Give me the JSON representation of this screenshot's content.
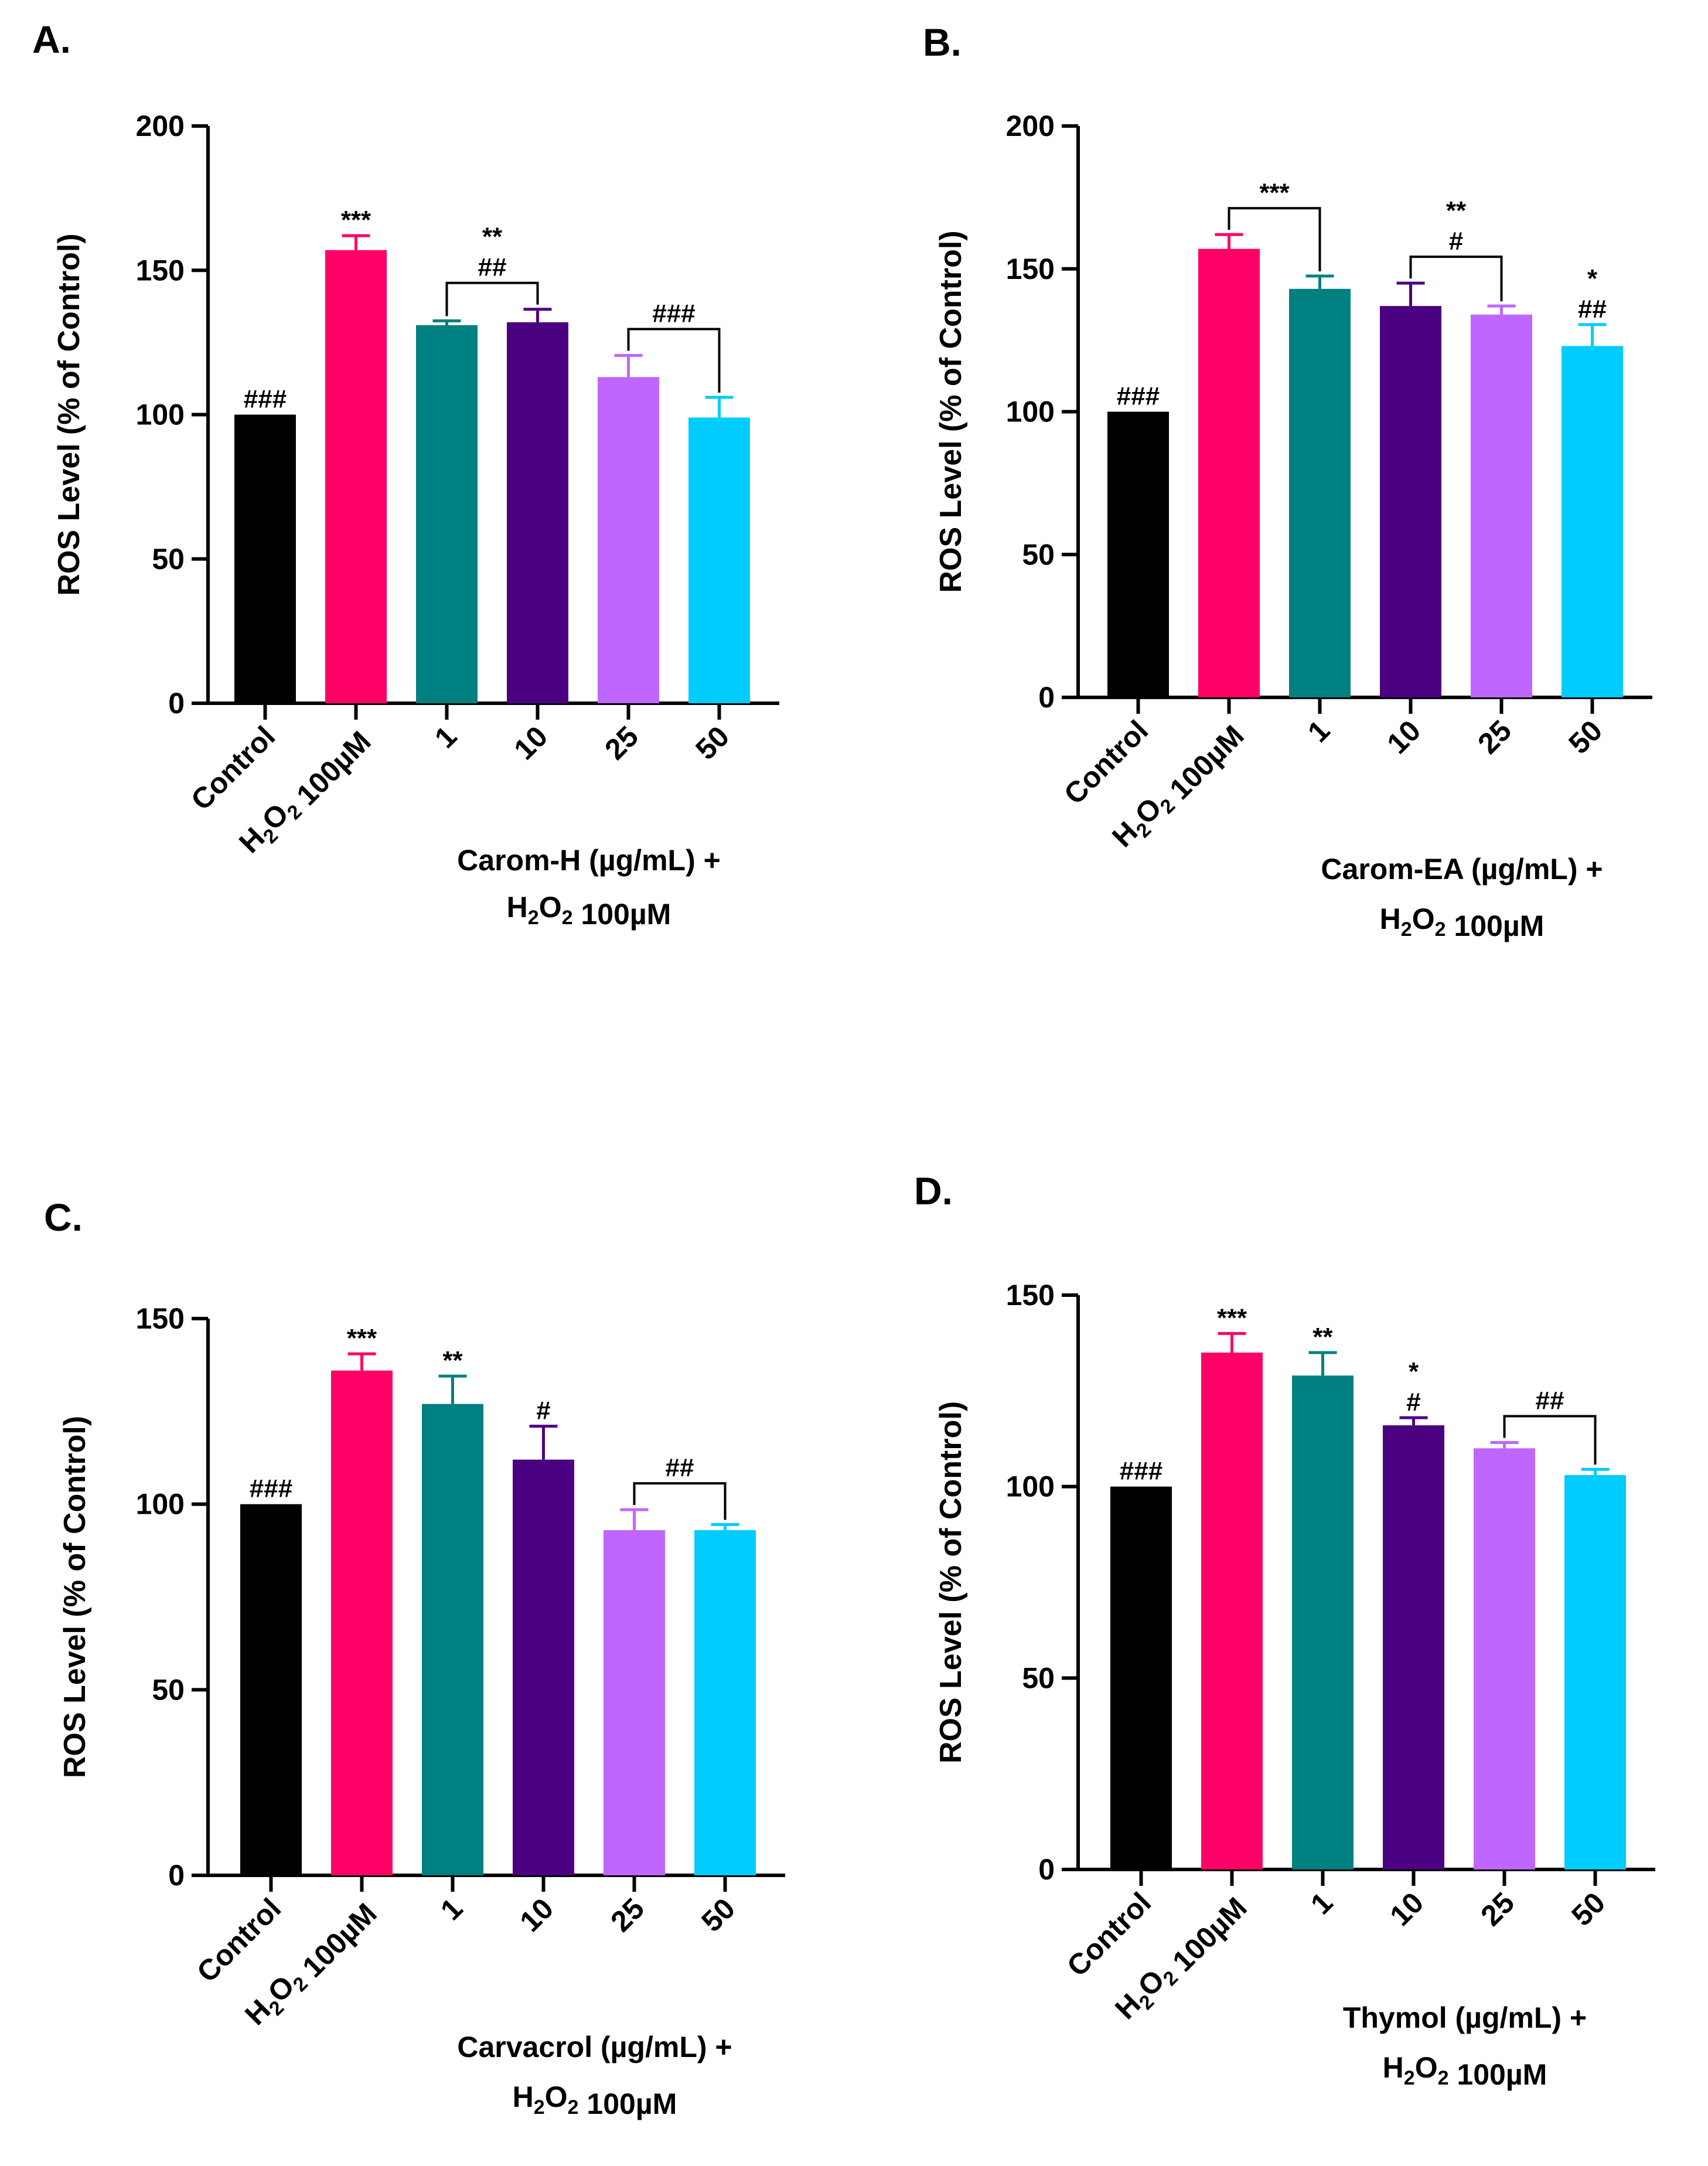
{
  "chart_data": [
    {
      "panel": "A.",
      "type": "bar",
      "ylabel": "ROS Level (% of Control)",
      "xlabel": [
        "Carom-H (µg/mL) +",
        "H2O2 100µM"
      ],
      "ylim": [
        0,
        200
      ],
      "yticks": [
        0,
        50,
        100,
        150,
        200
      ],
      "categories": [
        "Control",
        "H2O2 100µM",
        "1",
        "10",
        "25",
        "50"
      ],
      "values": [
        100,
        157,
        131,
        132,
        113,
        99
      ],
      "errors": [
        0,
        5,
        1.5,
        4.5,
        7.5,
        7
      ],
      "colors": [
        "#000000",
        "#ff0066",
        "#008080",
        "#4b0082",
        "#bf66ff",
        "#00ccff"
      ],
      "annotations": [
        {
          "bar": 0,
          "lines": [
            "###"
          ]
        },
        {
          "bar": 1,
          "lines": [
            "***"
          ]
        },
        {
          "bracket": [
            2,
            3
          ],
          "lines": [
            "**",
            "##"
          ]
        },
        {
          "bracket": [
            4,
            5
          ],
          "lines": [
            "###"
          ]
        }
      ]
    },
    {
      "panel": "B.",
      "type": "bar",
      "ylabel": "ROS Level (% of Control)",
      "xlabel": [
        "Carom-EA (µg/mL) +",
        "H2O2 100µM"
      ],
      "ylim": [
        0,
        200
      ],
      "yticks": [
        0,
        50,
        100,
        150,
        200
      ],
      "categories": [
        "Control",
        "H2O2 100µM",
        "1",
        "10",
        "25",
        "50"
      ],
      "values": [
        100,
        157,
        143,
        137,
        134,
        123
      ],
      "errors": [
        0,
        5,
        4.5,
        8,
        3,
        7.5
      ],
      "colors": [
        "#000000",
        "#ff0066",
        "#008080",
        "#4b0082",
        "#bf66ff",
        "#00ccff"
      ],
      "annotations": [
        {
          "bar": 0,
          "lines": [
            "###"
          ]
        },
        {
          "bracket": [
            1,
            2
          ],
          "lines": [
            "***"
          ]
        },
        {
          "bracket": [
            3,
            4
          ],
          "lines": [
            "**",
            "#"
          ]
        },
        {
          "bar": 5,
          "lines": [
            "*",
            "##"
          ]
        }
      ]
    },
    {
      "panel": "C.",
      "type": "bar",
      "ylabel": "ROS Level (% of Control)",
      "xlabel": [
        "Carvacrol (µg/mL) +",
        "H2O2 100µM"
      ],
      "ylim": [
        0,
        150
      ],
      "yticks": [
        0,
        50,
        100,
        150
      ],
      "categories": [
        "Control",
        "H2O2 100µM",
        "1",
        "10",
        "25",
        "50"
      ],
      "values": [
        100,
        136,
        127,
        112,
        93,
        93
      ],
      "errors": [
        0,
        4.5,
        7.5,
        9,
        5.5,
        1.5
      ],
      "colors": [
        "#000000",
        "#ff0066",
        "#008080",
        "#4b0082",
        "#bf66ff",
        "#00ccff"
      ],
      "annotations": [
        {
          "bar": 0,
          "lines": [
            "###"
          ]
        },
        {
          "bar": 1,
          "lines": [
            "***"
          ]
        },
        {
          "bar": 2,
          "lines": [
            "**"
          ]
        },
        {
          "bar": 3,
          "lines": [
            "#"
          ]
        },
        {
          "bracket": [
            4,
            5
          ],
          "lines": [
            "##"
          ]
        }
      ]
    },
    {
      "panel": "D.",
      "type": "bar",
      "ylabel": "ROS Level (% of Control)",
      "xlabel": [
        "Thymol (µg/mL) +",
        "H2O2 100µM"
      ],
      "ylim": [
        0,
        150
      ],
      "yticks": [
        0,
        50,
        100,
        150
      ],
      "categories": [
        "Control",
        "H2O2 100µM",
        "1",
        "10",
        "25",
        "50"
      ],
      "values": [
        100,
        135,
        129,
        116,
        110,
        103
      ],
      "errors": [
        0,
        5,
        6,
        2,
        1.5,
        1.5
      ],
      "colors": [
        "#000000",
        "#ff0066",
        "#008080",
        "#4b0082",
        "#bf66ff",
        "#00ccff"
      ],
      "annotations": [
        {
          "bar": 0,
          "lines": [
            "###"
          ]
        },
        {
          "bar": 1,
          "lines": [
            "***"
          ]
        },
        {
          "bar": 2,
          "lines": [
            "**"
          ]
        },
        {
          "bar": 3,
          "lines": [
            "*",
            "#"
          ]
        },
        {
          "bracket": [
            4,
            5
          ],
          "lines": [
            "##"
          ]
        }
      ]
    }
  ]
}
